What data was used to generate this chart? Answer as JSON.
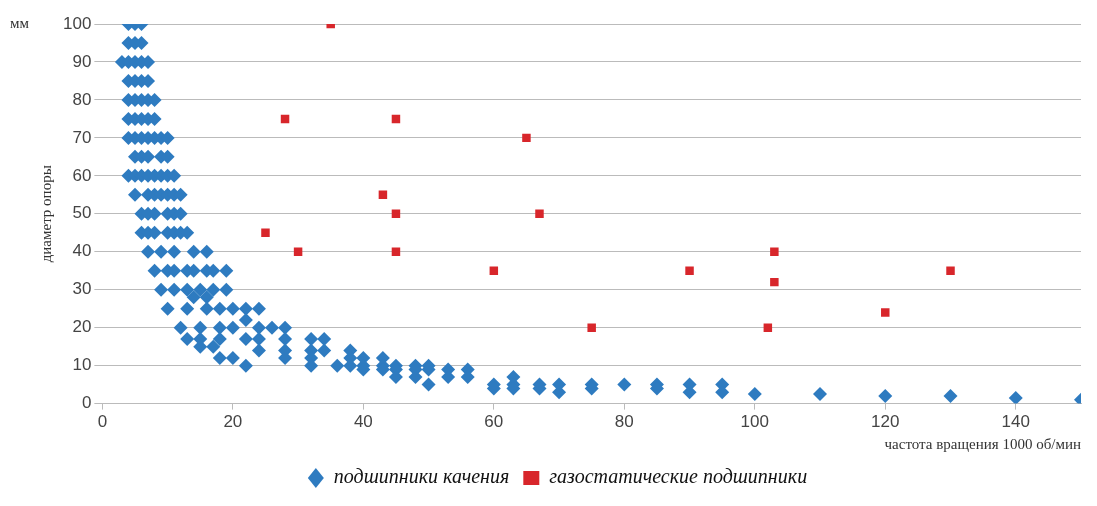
{
  "chart_data": {
    "type": "scatter",
    "xlabel": "частота вращения 1000 об/мин",
    "ylabel": "диаметр опоры",
    "annotations": [
      "мм"
    ],
    "xlim": [
      0,
      150
    ],
    "xticks": [
      0,
      20,
      40,
      60,
      80,
      100,
      120,
      140
    ],
    "ylim": [
      0,
      100
    ],
    "yticks": [
      0,
      10,
      20,
      30,
      40,
      50,
      60,
      70,
      80,
      90,
      100
    ],
    "grid": "y",
    "legend": "bottom",
    "series": [
      {
        "name": "подшипники качения",
        "color": "#2e7bc0",
        "marker": "diamond",
        "x": [
          4,
          5,
          6,
          4,
          5,
          6,
          3,
          4,
          5,
          6,
          7,
          4,
          5,
          6,
          7,
          4,
          5,
          6,
          7,
          8,
          4,
          5,
          6,
          7,
          8,
          4,
          5,
          6,
          7,
          8,
          9,
          10,
          5,
          6,
          7,
          9,
          10,
          4,
          5,
          6,
          7,
          8,
          9,
          10,
          11,
          5,
          7,
          8,
          9,
          10,
          11,
          12,
          6,
          7,
          8,
          10,
          11,
          12,
          6,
          7,
          8,
          10,
          11,
          12,
          13,
          7,
          9,
          11,
          14,
          16,
          8,
          10,
          11,
          13,
          14,
          16,
          17,
          19,
          9,
          11,
          13,
          15,
          17,
          19,
          14,
          16,
          10,
          13,
          16,
          18,
          20,
          22,
          24,
          12,
          15,
          18,
          20,
          22,
          24,
          26,
          28,
          13,
          15,
          18,
          22,
          24,
          28,
          32,
          34,
          15,
          17,
          24,
          28,
          32,
          34,
          38,
          18,
          20,
          28,
          32,
          38,
          40,
          43,
          22,
          32,
          36,
          38,
          40,
          43,
          45,
          48,
          50,
          40,
          43,
          45,
          48,
          50,
          53,
          56,
          45,
          48,
          53,
          56,
          63,
          50,
          60,
          63,
          67,
          70,
          75,
          80,
          85,
          90,
          95,
          60,
          63,
          67,
          70,
          75,
          85,
          90,
          95,
          100,
          110,
          120,
          130,
          140,
          150
        ],
        "values": [
          100,
          100,
          100,
          95,
          95,
          95,
          90,
          90,
          90,
          90,
          90,
          85,
          85,
          85,
          85,
          80,
          80,
          80,
          80,
          80,
          75,
          75,
          75,
          75,
          75,
          70,
          70,
          70,
          70,
          70,
          70,
          70,
          65,
          65,
          65,
          65,
          65,
          60,
          60,
          60,
          60,
          60,
          60,
          60,
          60,
          55,
          55,
          55,
          55,
          55,
          55,
          55,
          50,
          50,
          50,
          50,
          50,
          50,
          45,
          45,
          45,
          45,
          45,
          45,
          45,
          40,
          40,
          40,
          40,
          40,
          35,
          35,
          35,
          35,
          35,
          35,
          35,
          35,
          30,
          30,
          30,
          30,
          30,
          30,
          28,
          28,
          25,
          25,
          25,
          25,
          25,
          25,
          25,
          20,
          20,
          20,
          20,
          22,
          20,
          20,
          20,
          17,
          17,
          17,
          17,
          17,
          17,
          17,
          17,
          15,
          15,
          14,
          14,
          14,
          14,
          14,
          12,
          12,
          12,
          12,
          12,
          12,
          12,
          10,
          10,
          10,
          10,
          10,
          10,
          10,
          10,
          10,
          9,
          9,
          9,
          9,
          9,
          9,
          9,
          7,
          7,
          7,
          7,
          7,
          5,
          5,
          5,
          5,
          5,
          5,
          5,
          5,
          5,
          5,
          4,
          4,
          4,
          3,
          4,
          4,
          3,
          3,
          2.5,
          2.5,
          2,
          2,
          1.5,
          1
        ]
      },
      {
        "name": "газостатические подшипники",
        "color": "#d8262b",
        "marker": "square",
        "x": [
          35,
          28,
          45,
          65,
          43,
          45,
          67,
          25,
          30,
          45,
          103,
          60,
          90,
          130,
          103,
          120,
          75,
          102
        ],
        "values": [
          100,
          75,
          75,
          70,
          55,
          50,
          50,
          45,
          40,
          40,
          40,
          35,
          35,
          35,
          32,
          24,
          20,
          20
        ]
      }
    ]
  }
}
